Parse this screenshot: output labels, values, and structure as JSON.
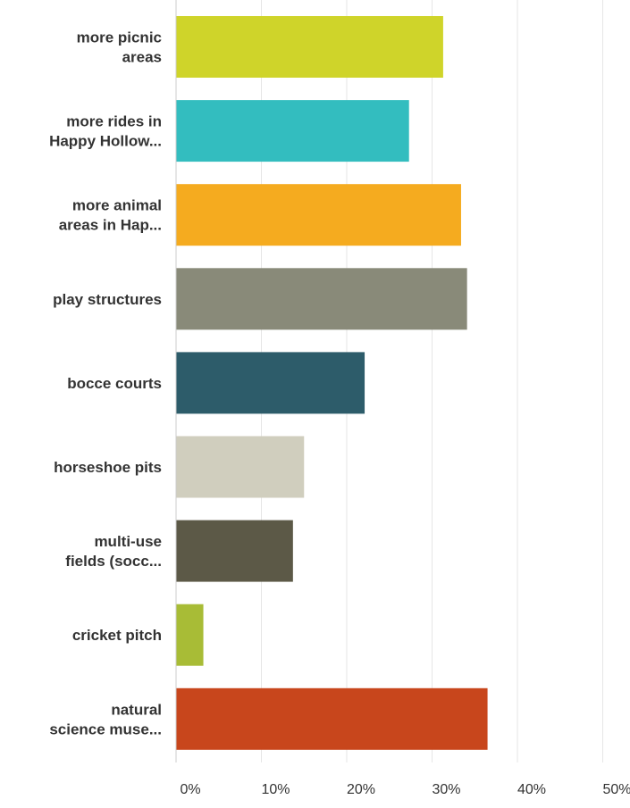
{
  "chart_data": {
    "type": "bar",
    "orientation": "horizontal",
    "categories": [
      [
        "more picnic",
        "areas"
      ],
      [
        "more rides in",
        "Happy Hollow..."
      ],
      [
        "more animal",
        "areas in Hap..."
      ],
      [
        "play structures"
      ],
      [
        "bocce courts"
      ],
      [
        "horseshoe pits"
      ],
      [
        "multi-use",
        "fields (socc..."
      ],
      [
        "cricket pitch"
      ],
      [
        "natural",
        "science muse..."
      ]
    ],
    "values": [
      31.3,
      27.3,
      33.4,
      34.1,
      22.1,
      15.0,
      13.7,
      3.2,
      36.5
    ],
    "colors": [
      "#cfd42a",
      "#33bdbf",
      "#f5ab1f",
      "#898a79",
      "#2d5c6a",
      "#d0cebe",
      "#5c5947",
      "#a8bc36",
      "#c8461c"
    ],
    "xlim": [
      0,
      54
    ],
    "xticks": [
      0,
      10,
      20,
      30,
      40,
      50
    ],
    "xtick_labels": [
      "0%",
      "10%",
      "20%",
      "30%",
      "40%",
      "50%"
    ],
    "grid": true,
    "legend": "none",
    "title": "",
    "xlabel": "",
    "ylabel": ""
  }
}
